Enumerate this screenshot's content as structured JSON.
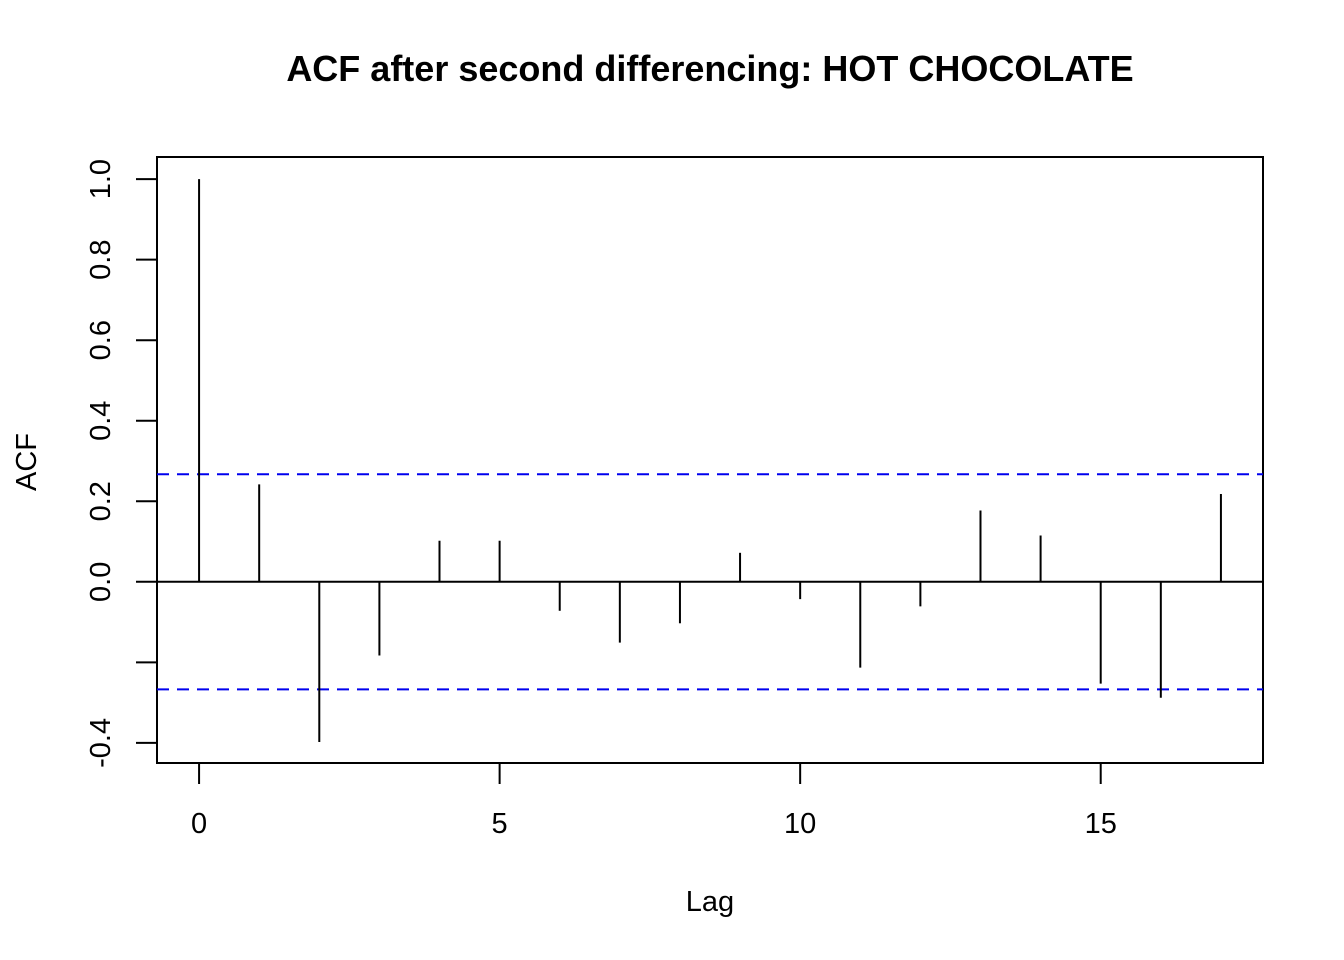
{
  "chart_data": {
    "type": "bar",
    "title": "ACF after second differencing: HOT CHOCOLATE",
    "xlabel": "Lag",
    "ylabel": "ACF",
    "xlim": [
      -0.7,
      17.7
    ],
    "ylim": [
      -0.45,
      1.055
    ],
    "x_ticks": [
      0,
      5,
      10,
      15
    ],
    "y_ticks": [
      -0.4,
      -0.2,
      0.0,
      0.2,
      0.4,
      0.6,
      0.8,
      1.0
    ],
    "y_tick_labels": [
      "-0.4",
      "",
      "0.0",
      "0.2",
      "0.4",
      "0.6",
      "0.8",
      "1.0"
    ],
    "grid": false,
    "lags": [
      0,
      1,
      2,
      3,
      4,
      5,
      6,
      7,
      8,
      9,
      10,
      11,
      12,
      13,
      14,
      15,
      16,
      17
    ],
    "values": [
      1.0,
      0.242,
      -0.398,
      -0.183,
      0.102,
      0.102,
      -0.072,
      -0.151,
      -0.103,
      0.072,
      -0.043,
      -0.213,
      -0.061,
      0.177,
      0.115,
      -0.253,
      -0.288,
      0.218
    ],
    "confidence_bounds": [
      0.267,
      -0.267
    ],
    "colors": {
      "spikes": "#000000",
      "zero_line": "#000000",
      "bounds": "#0000ee"
    }
  }
}
